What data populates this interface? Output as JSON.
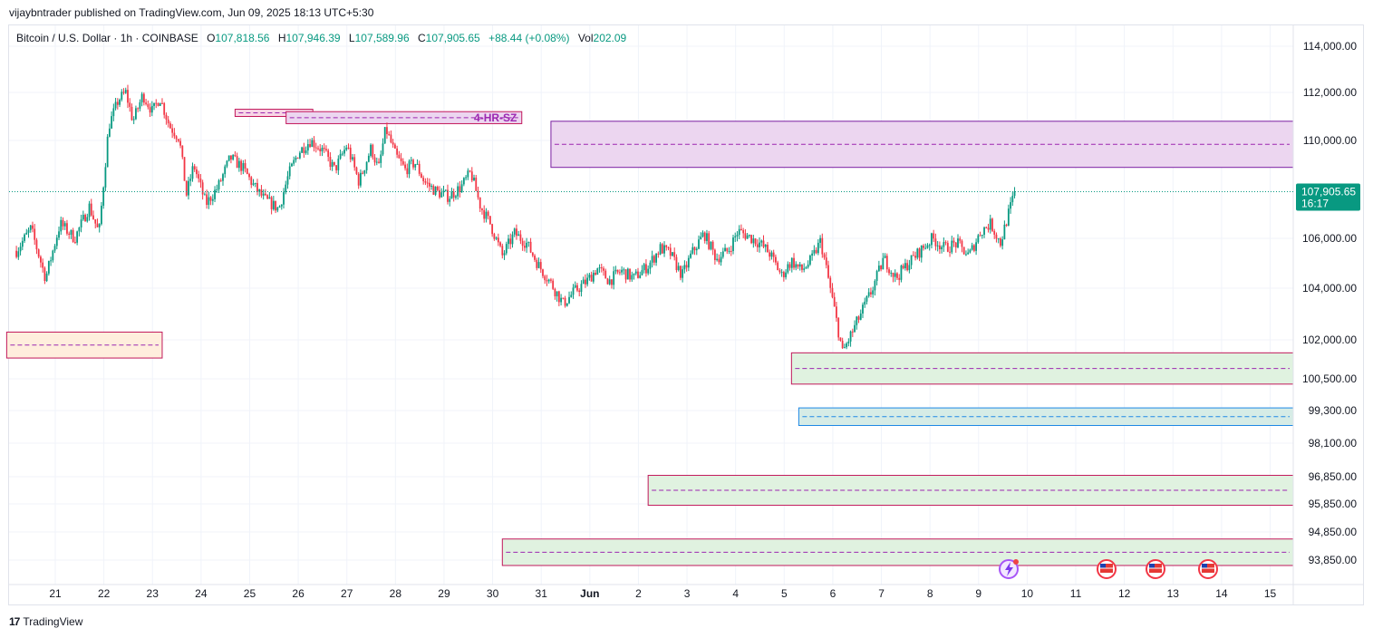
{
  "publisher": "vijaybntrader published on TradingView.com, Jun 09, 2025 18:13 UTC+5:30",
  "legend": {
    "symbol": "Bitcoin / U.S. Dollar · 1h · COINBASE",
    "o_label": "O",
    "o_value": "107,818.56",
    "h_label": "H",
    "h_value": "107,946.39",
    "l_label": "L",
    "l_value": "107,589.96",
    "c_label": "C",
    "c_value": "107,905.65",
    "change": "+88.44 (+0.08%)",
    "vol_label": "Vol",
    "vol_value": "202.09"
  },
  "brand": {
    "logo": "17",
    "name": "TradingView"
  },
  "colors": {
    "up": "#089981",
    "down": "#f23645",
    "price_tag": "#089981",
    "supply_zone": "#e1bee7",
    "demand_zone": "#c8e6c9",
    "blue_zone": "#b2dfdb"
  },
  "chart_data": {
    "type": "candlestick",
    "title": "Bitcoin / U.S. Dollar · 1h · COINBASE",
    "x_ticks": [
      "21",
      "22",
      "23",
      "24",
      "25",
      "26",
      "27",
      "28",
      "29",
      "30",
      "31",
      "Jun",
      "2",
      "3",
      "4",
      "5",
      "6",
      "7",
      "8",
      "9",
      "10",
      "11",
      "12",
      "13",
      "14",
      "15"
    ],
    "y_ticks": [
      114000,
      112000,
      110000,
      106000,
      104000,
      102000,
      100500,
      99300,
      98100,
      96850,
      95850,
      94850,
      93850
    ],
    "y_tick_labels": [
      "114,000.00",
      "112,000.00",
      "110,000.00",
      "106,000.00",
      "104,000.00",
      "102,000.00",
      "100,500.00",
      "99,300.00",
      "98,100.00",
      "96,850.00",
      "95,850.00",
      "94,850.00",
      "93,850.00"
    ],
    "last_price": 107905.65,
    "last_price_label": "107,905.65",
    "countdown": "16:17",
    "path": [
      [
        20.2,
        105500
      ],
      [
        20.5,
        106400
      ],
      [
        20.8,
        104400
      ],
      [
        21.1,
        106600
      ],
      [
        21.4,
        106000
      ],
      [
        21.7,
        107300
      ],
      [
        21.9,
        106200
      ],
      [
        22.1,
        110600
      ],
      [
        22.3,
        111700
      ],
      [
        22.45,
        112000
      ],
      [
        22.6,
        110800
      ],
      [
        22.8,
        111900
      ],
      [
        23.0,
        111200
      ],
      [
        23.15,
        111800
      ],
      [
        23.35,
        110600
      ],
      [
        23.55,
        110100
      ],
      [
        23.7,
        107800
      ],
      [
        23.85,
        109000
      ],
      [
        24.1,
        107400
      ],
      [
        24.35,
        108100
      ],
      [
        24.6,
        109300
      ],
      [
        24.85,
        108900
      ],
      [
        25.1,
        108100
      ],
      [
        25.3,
        107600
      ],
      [
        25.6,
        107200
      ],
      [
        25.8,
        108600
      ],
      [
        26.0,
        109500
      ],
      [
        26.25,
        110000
      ],
      [
        26.5,
        109600
      ],
      [
        26.75,
        108800
      ],
      [
        27.0,
        109800
      ],
      [
        27.25,
        108300
      ],
      [
        27.5,
        109700
      ],
      [
        27.65,
        108800
      ],
      [
        27.8,
        110500
      ],
      [
        28.0,
        109400
      ],
      [
        28.2,
        108800
      ],
      [
        28.4,
        109100
      ],
      [
        28.6,
        108300
      ],
      [
        28.85,
        107900
      ],
      [
        29.1,
        107700
      ],
      [
        29.35,
        108100
      ],
      [
        29.55,
        108700
      ],
      [
        29.75,
        107300
      ],
      [
        29.95,
        106600
      ],
      [
        30.2,
        105300
      ],
      [
        30.45,
        106200
      ],
      [
        30.7,
        105800
      ],
      [
        30.95,
        104900
      ],
      [
        31.2,
        104200
      ],
      [
        31.45,
        103400
      ],
      [
        31.7,
        103900
      ],
      [
        31.95,
        104300
      ],
      [
        32.15,
        104800
      ],
      [
        32.4,
        104300
      ],
      [
        32.65,
        104700
      ],
      [
        32.9,
        104400
      ],
      [
        33.2,
        104900
      ],
      [
        33.45,
        105600
      ],
      [
        33.65,
        105400
      ],
      [
        33.9,
        104500
      ],
      [
        34.1,
        105400
      ],
      [
        34.35,
        106200
      ],
      [
        34.6,
        105200
      ],
      [
        34.85,
        105500
      ],
      [
        35.05,
        106300
      ],
      [
        35.25,
        106100
      ],
      [
        35.5,
        105800
      ],
      [
        35.7,
        105400
      ],
      [
        35.95,
        104500
      ],
      [
        36.15,
        105100
      ],
      [
        36.35,
        104700
      ],
      [
        36.55,
        105100
      ],
      [
        36.75,
        105900
      ],
      [
        37.05,
        103000
      ],
      [
        37.2,
        101500
      ],
      [
        37.35,
        102100
      ],
      [
        37.55,
        102900
      ],
      [
        37.8,
        103900
      ],
      [
        38.05,
        105200
      ],
      [
        38.3,
        104400
      ],
      [
        38.55,
        105000
      ],
      [
        38.8,
        105500
      ],
      [
        39.05,
        106000
      ],
      [
        39.3,
        105600
      ],
      [
        39.55,
        105800
      ],
      [
        39.8,
        105300
      ],
      [
        40.05,
        106300
      ],
      [
        40.25,
        106600
      ],
      [
        40.45,
        105800
      ],
      [
        40.6,
        106900
      ],
      [
        40.75,
        107900
      ]
    ]
  }
}
